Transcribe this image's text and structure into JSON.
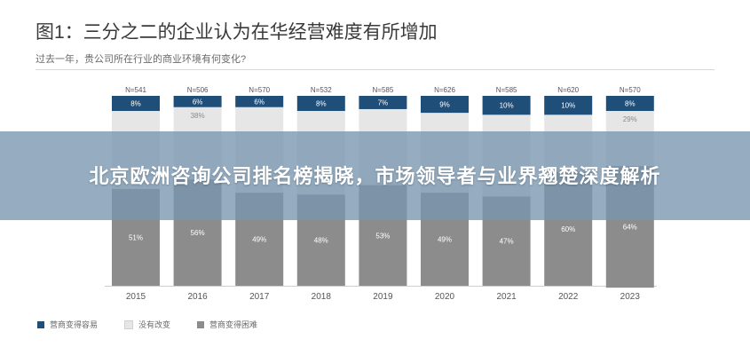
{
  "figure": {
    "title": "图1：三分之二的企业认为在华经营难度有所增加",
    "subtitle": "过去一年，贵公司所在行业的商业环境有何变化?"
  },
  "overlay": {
    "headline": "北京欧洲咨询公司排名榜揭晓，市场领导者与业界翘楚深度解析"
  },
  "colors": {
    "easier": "#1f4e79",
    "no_change": "#e6e6e6",
    "harder": "#8c8c8c",
    "banner": "#7896af"
  },
  "chart_data": {
    "type": "bar",
    "stacked": true,
    "categories": [
      "2015",
      "2016",
      "2017",
      "2018",
      "2019",
      "2020",
      "2021",
      "2022",
      "2023"
    ],
    "n_labels": [
      "N=541",
      "N=506",
      "N=570",
      "N=532",
      "N=585",
      "N=626",
      "N=585",
      "N=620",
      "N=570"
    ],
    "series": [
      {
        "name": "营商变得容易",
        "color": "#1f4e79",
        "values": [
          8,
          6,
          6,
          8,
          7,
          9,
          10,
          10,
          8
        ],
        "labels": [
          "8%",
          "6%",
          "6%",
          "8%",
          "7%",
          "9%",
          "10%",
          "10%",
          "8%"
        ]
      },
      {
        "name": "没有改变",
        "color": "#e6e6e6",
        "values": [
          41,
          38,
          45,
          44,
          40,
          42,
          43,
          30,
          29
        ],
        "labels": [
          "",
          "38%",
          "",
          "",
          "",
          "",
          "",
          "",
          "29%"
        ]
      },
      {
        "name": "营商变得困难",
        "color": "#8c8c8c",
        "values": [
          51,
          56,
          49,
          48,
          53,
          49,
          47,
          60,
          64
        ],
        "labels": [
          "51%",
          "56%",
          "49%",
          "48%",
          "53%",
          "49%",
          "47%",
          "60%",
          "64%"
        ]
      }
    ],
    "ylim": [
      0,
      100
    ],
    "legend_position": "bottom-left",
    "grid": false
  }
}
